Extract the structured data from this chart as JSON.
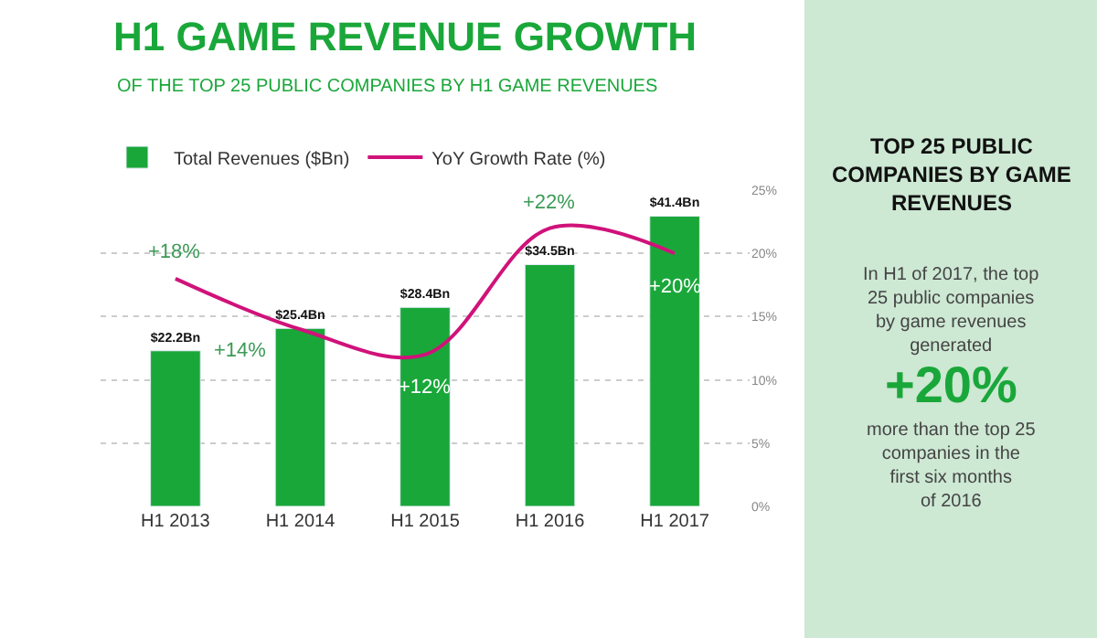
{
  "chart_data": {
    "type": "bar",
    "title": "H1 GAME REVENUE GROWTH",
    "subtitle": "OF THE TOP 25 PUBLIC COMPANIES BY H1 GAME REVENUES",
    "categories": [
      "H1 2013",
      "H1 2014",
      "H1 2015",
      "H1 2016",
      "H1 2017"
    ],
    "series": [
      {
        "name": "Total Revenues ($Bn)",
        "color": "#1aa73a",
        "values": [
          22.2,
          25.4,
          28.4,
          34.5,
          41.4
        ],
        "value_labels": [
          "$22.2Bn",
          "$25.4Bn",
          "$28.4Bn",
          "$34.5Bn",
          "$41.4Bn"
        ]
      },
      {
        "name": "YoY Growth Rate (%)",
        "type": "line",
        "axis": "y2",
        "color": "#d0127a",
        "values": [
          18,
          14,
          12,
          22,
          20
        ],
        "value_labels": [
          "+18%",
          "+14%",
          "+12%",
          "+22%",
          "+20%"
        ]
      }
    ],
    "y2lim": [
      0,
      25
    ],
    "y2ticks": [
      {
        "value": 0,
        "label": "0%"
      },
      {
        "value": 5,
        "label": "5%"
      },
      {
        "value": 10,
        "label": "10%"
      },
      {
        "value": 15,
        "label": "15%"
      },
      {
        "value": 20,
        "label": "20%"
      },
      {
        "value": 25,
        "label": "25%"
      }
    ],
    "grid": true,
    "legend": "top left",
    "marker": "none",
    "line_style": "solid",
    "annotations": [
      "TOP 25 PUBLIC\nCOMPANIES BY GAME\nREVENUES",
      "In H1 of 2017, the top\n25 public companies\nby game revenues\ngenerated",
      "+20%",
      "more than the top 25\ncompanies in the\nfirst six months\nof 2016"
    ]
  }
}
